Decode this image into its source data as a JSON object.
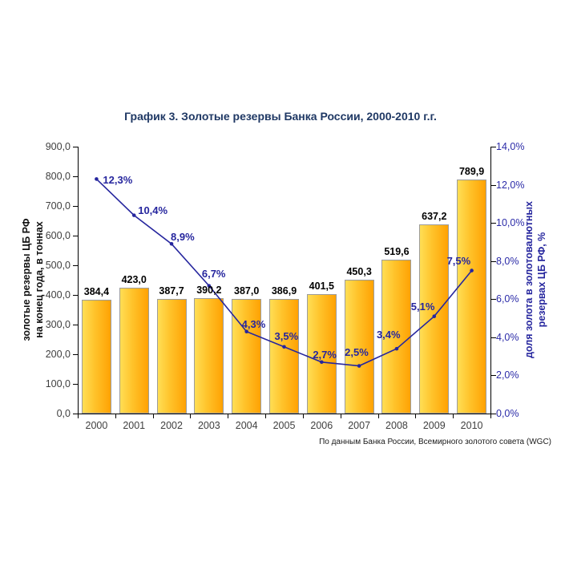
{
  "page": {
    "background": "#FFFFFF"
  },
  "chart_data": {
    "type": "bar",
    "combo": "bar+line",
    "title": "График 3. Золотые резервы Банка России, 2000-2010 г.г.",
    "caption": "По данным Банка России, Всемирного золотого совета (WGC)",
    "categories": [
      "2000",
      "2001",
      "2002",
      "2003",
      "2004",
      "2005",
      "2006",
      "2007",
      "2008",
      "2009",
      "2010"
    ],
    "series": [
      {
        "name": "золотые резервы ЦБ РФ, в тоннах",
        "type": "bar",
        "axis": "left",
        "values": [
          384.4,
          423.0,
          387.7,
          390.2,
          387.0,
          386.9,
          401.5,
          450.3,
          519.6,
          637.2,
          789.9
        ],
        "labels": [
          "384,4",
          "423,0",
          "387,7",
          "390,2",
          "387,0",
          "386,9",
          "401,5",
          "450,3",
          "519,6",
          "637,2",
          "789,9"
        ]
      },
      {
        "name": "доля золота в золотовалютных резервах ЦБ РФ, %",
        "type": "line",
        "axis": "right",
        "values": [
          12.3,
          10.4,
          8.9,
          6.7,
          4.3,
          3.5,
          2.7,
          2.5,
          3.4,
          5.1,
          7.5
        ],
        "labels": [
          "12,3%",
          "10,4%",
          "8,9%",
          "6,7%",
          "4,3%",
          "3,5%",
          "2,7%",
          "2,5%",
          "3,4%",
          "5,1%",
          "7,5%"
        ]
      }
    ],
    "left_axis": {
      "title_line1": "золотые резервы ЦБ РФ",
      "title_line2": "на конец года, в тоннах",
      "min": 0,
      "max": 900,
      "step": 100,
      "tick_labels": [
        "0,0",
        "100,0",
        "200,0",
        "300,0",
        "400,0",
        "500,0",
        "600,0",
        "700,0",
        "800,0",
        "900,0"
      ]
    },
    "right_axis": {
      "title_line1": "доля золота в золотовалютных",
      "title_line2": "резервах ЦБ РФ, %",
      "min": 0,
      "max": 14,
      "step": 2,
      "tick_labels": [
        "0,0%",
        "2,0%",
        "4,0%",
        "6,0%",
        "8,0%",
        "10,0%",
        "12,0%",
        "14,0%"
      ]
    },
    "grid": false,
    "legend": false,
    "colors": {
      "bar_gradient_start": "#FFDE55",
      "bar_gradient_end": "#FFA203",
      "bar_border": "#9C9C9C",
      "line": "#26269E",
      "bar_value_label": "#000000",
      "pct_label": "#26269E",
      "axis_text": "#3F3F3F",
      "right_axis_text": "#2B2BA8",
      "title": "#1F3864",
      "axis_line": "#000000"
    }
  }
}
